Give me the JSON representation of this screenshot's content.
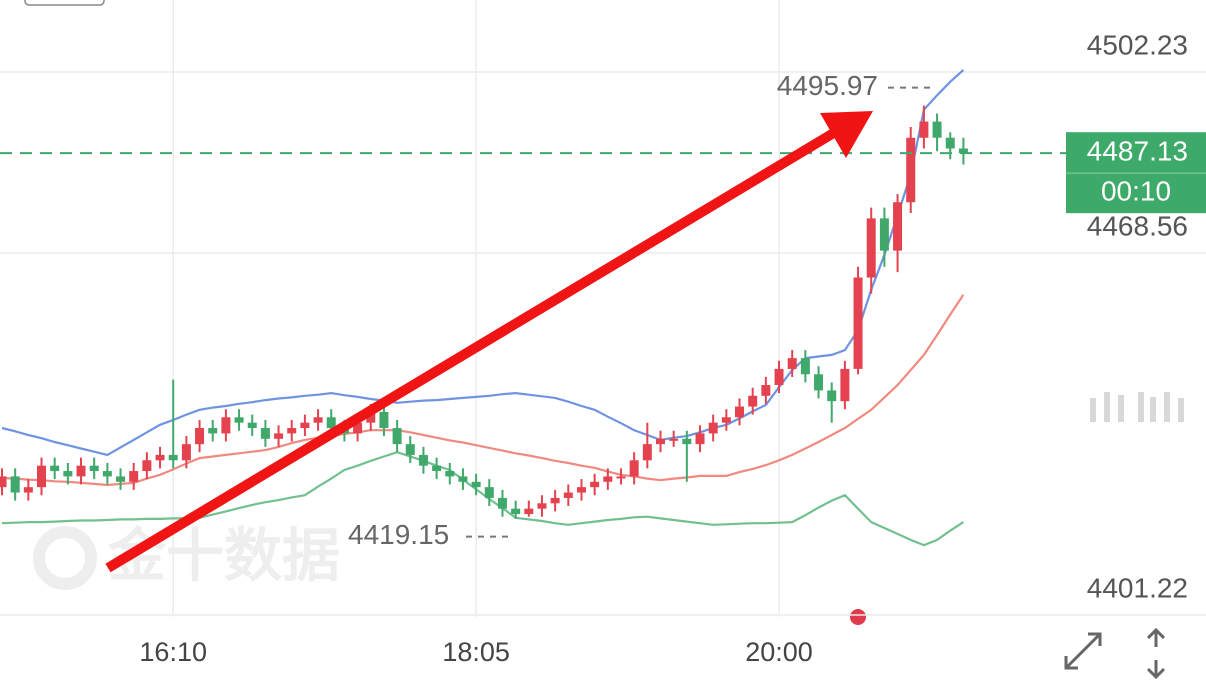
{
  "chart_data": {
    "type": "candlestick",
    "categories": [
      null,
      null,
      null,
      null,
      null,
      null,
      null,
      null,
      null,
      null,
      null,
      null,
      null,
      "16:10",
      null,
      null,
      null,
      null,
      null,
      null,
      null,
      null,
      null,
      null,
      null,
      null,
      null,
      null,
      null,
      null,
      null,
      null,
      null,
      null,
      null,
      null,
      "18:05",
      null,
      null,
      null,
      null,
      null,
      null,
      null,
      null,
      null,
      null,
      null,
      null,
      null,
      null,
      null,
      null,
      null,
      null,
      null,
      null,
      null,
      null,
      "20:00",
      null,
      null,
      null,
      null,
      null,
      null,
      null,
      null,
      null,
      null,
      null,
      null,
      null,
      null
    ],
    "open": [
      4425,
      4427,
      4424,
      4425,
      4429,
      4428,
      4427,
      4429,
      4428,
      4427,
      4426,
      4428,
      4430,
      4431,
      4430,
      4433,
      4436,
      4435,
      4438,
      4437,
      4436,
      4434,
      4435,
      4436,
      4437,
      4438,
      4436,
      4435,
      4437,
      4439,
      4436,
      4433,
      4431,
      4429,
      4428,
      4427,
      4426,
      4425,
      4423,
      4421,
      4420,
      4421,
      4422,
      4423,
      4424,
      4425,
      4426,
      4427,
      4427,
      4430,
      4433,
      4434,
      4434,
      4433,
      4435,
      4437,
      4438,
      4440,
      4442,
      4444,
      4447,
      4449,
      4446,
      4443,
      4441,
      4447,
      4464,
      4475,
      4469,
      4478,
      4490,
      4493,
      4490,
      4488
    ],
    "high": [
      4428.5,
      4428.5,
      4426.5,
      4430.5,
      4430.5,
      4429.5,
      4430.5,
      4430.5,
      4429.5,
      4428.5,
      4429.5,
      4431.5,
      4432.5,
      4445,
      4434.5,
      4437.5,
      4437.5,
      4439.5,
      4439.5,
      4438.5,
      4437.5,
      4436.5,
      4437.5,
      4438.5,
      4439.5,
      4439.5,
      4437.5,
      4438.5,
      4440.5,
      4440.5,
      4437.5,
      4434.5,
      4432.5,
      4430.5,
      4429.5,
      4428.5,
      4427.5,
      4426.5,
      4424.5,
      4422.5,
      4422.5,
      4423.5,
      4424.5,
      4425.5,
      4426.5,
      4427.5,
      4428.5,
      4428.5,
      4431.5,
      4437,
      4435.5,
      4435.5,
      4435.5,
      4436.5,
      4438.5,
      4439.5,
      4441.5,
      4443.5,
      4445.5,
      4448.5,
      4450.5,
      4450.5,
      4447.5,
      4444.5,
      4448.5,
      4466,
      4477,
      4477,
      4479.5,
      4492,
      4495.97,
      4494.5,
      4491,
      4490
    ],
    "low": [
      4423.5,
      4422.5,
      4422.5,
      4423.5,
      4426.5,
      4425.5,
      4425.5,
      4426.5,
      4425.5,
      4424.5,
      4424.5,
      4426.5,
      4428.5,
      4428.5,
      4428.5,
      4431.5,
      4433.5,
      4433.5,
      4435.5,
      4434.5,
      4432.5,
      4432.5,
      4433.5,
      4434.5,
      4435.5,
      4434.5,
      4433.5,
      4433.5,
      4435.5,
      4434.5,
      4431.5,
      4429.5,
      4427.5,
      4426.5,
      4425.5,
      4424.5,
      4423.5,
      4421.5,
      4419.5,
      4419.15,
      4419.5,
      4419.5,
      4420.5,
      4421.5,
      4422.5,
      4423.5,
      4424.5,
      4425.5,
      4425.5,
      4428.5,
      4431.5,
      4432.5,
      4426,
      4431.5,
      4433.5,
      4435.5,
      4436.5,
      4438.5,
      4440.5,
      4442.5,
      4445.5,
      4444.5,
      4441.5,
      4437,
      4439.5,
      4446,
      4461,
      4466,
      4465,
      4476,
      4488,
      4487.5,
      4486,
      4485
    ],
    "close": [
      4427,
      4424,
      4425,
      4429,
      4428,
      4427,
      4429,
      4428,
      4427,
      4426,
      4428,
      4430,
      4431,
      4430,
      4433,
      4436,
      4435,
      4438,
      4437,
      4436,
      4434,
      4435,
      4436,
      4437,
      4438,
      4436,
      4435,
      4437,
      4439,
      4436,
      4433,
      4431,
      4429,
      4428,
      4427,
      4426,
      4425,
      4423,
      4421,
      4420,
      4421,
      4422,
      4423,
      4424,
      4425,
      4426,
      4427,
      4427,
      4430,
      4433,
      4434,
      4434,
      4433,
      4435,
      4437,
      4438,
      4440,
      4442,
      4444,
      4447,
      4449,
      4446,
      4443,
      4441,
      4447,
      4464,
      4475,
      4469,
      4478,
      4490,
      4493,
      4490,
      4488,
      4487.13
    ],
    "up_color": "#e3424e",
    "down_color": "#3fa86a",
    "lines": [
      {
        "color": "#6f93e2",
        "values": [
          4436.0,
          4435.4,
          4434.7,
          4434.1,
          4433.4,
          4432.8,
          4432.2,
          4431.6,
          4431.0,
          4432.4,
          4433.8,
          4435.2,
          4436.6,
          4437.5,
          4438.5,
          4439.4,
          4439.8,
          4440.1,
          4440.5,
          4440.8,
          4441.2,
          4441.5,
          4441.7,
          4442.0,
          4442.2,
          4442.5,
          4442.1,
          4441.8,
          4441.4,
          4441.1,
          4440.7,
          4440.9,
          4441.1,
          4441.2,
          4441.4,
          4441.6,
          4441.8,
          4442.0,
          4442.3,
          4442.5,
          4442.2,
          4441.9,
          4441.6,
          4440.9,
          4440.1,
          4439.4,
          4438.1,
          4436.9,
          4435.6,
          4434.7,
          4433.8,
          4434.2,
          4434.5,
          4435.2,
          4436.0,
          4436.6,
          4437.8,
          4439.1,
          4440.3,
          4443.6,
          4446.8,
          4449.0,
          4449.3,
          4449.6,
          4450.5,
          4454.2,
          4461.7,
          4468.2,
          4475.6,
          4483.1,
          4495.2,
          4497.9,
          4500.4,
          4502.6
        ]
      },
      {
        "color": "#f08a80",
        "values": [
          4426.7,
          4426.6,
          4426.4,
          4426.3,
          4426.1,
          4426.0,
          4425.8,
          4425.6,
          4425.4,
          4425.6,
          4425.8,
          4426.6,
          4427.3,
          4428.3,
          4429.4,
          4430.4,
          4430.7,
          4431.0,
          4431.3,
          4431.6,
          4431.9,
          4432.5,
          4433.2,
          4433.8,
          4434.2,
          4434.5,
          4434.9,
          4435.2,
          4435.6,
          4435.6,
          4435.6,
          4435.2,
          4434.7,
          4434.2,
          4433.7,
          4433.3,
          4432.8,
          4432.3,
          4431.8,
          4431.3,
          4430.9,
          4430.4,
          4429.9,
          4429.5,
          4429.0,
          4428.6,
          4427.9,
          4427.3,
          4427.0,
          4426.6,
          4426.3,
          4426.6,
          4426.8,
          4427.1,
          4427.1,
          4427.1,
          4427.8,
          4428.4,
          4429.1,
          4430.0,
          4431.0,
          4432.2,
          4433.4,
          4434.7,
          4436.0,
          4437.7,
          4439.4,
          4441.7,
          4444.0,
          4446.8,
          4449.6,
          4453.3,
          4457.1,
          4460.8
        ]
      },
      {
        "color": "#72c08e",
        "values": [
          4418.3,
          4418.4,
          4418.5,
          4418.5,
          4418.6,
          4418.7,
          4418.8,
          4418.8,
          4418.9,
          4419.0,
          4419.0,
          4419.1,
          4419.1,
          4419.2,
          4419.2,
          4419.3,
          4419.9,
          4420.5,
          4421.1,
          4421.7,
          4422.2,
          4422.6,
          4423.1,
          4423.5,
          4425.1,
          4426.6,
          4428.2,
          4429.0,
          4429.9,
          4430.7,
          4431.5,
          4430.7,
          4429.9,
          4429.0,
          4428.2,
          4426.4,
          4424.6,
          4422.8,
          4421.1,
          4419.3,
          4419.0,
          4418.7,
          4418.3,
          4418.0,
          4418.3,
          4418.6,
          4418.9,
          4419.1,
          4419.4,
          4419.5,
          4419.2,
          4418.9,
          4418.6,
          4418.3,
          4418.0,
          4418.1,
          4418.2,
          4418.3,
          4418.3,
          4418.4,
          4418.5,
          4419.8,
          4421.2,
          4422.5,
          4423.5,
          4421.0,
          4418.5,
          4417.4,
          4416.3,
          4415.2,
          4414.2,
          4415.2,
          4416.9,
          4418.5
        ]
      }
    ],
    "ylim": [
      4400.85,
      4515.62
    ],
    "yticks": [
      4502.23,
      4468.56,
      4401.22
    ],
    "grid": true,
    "max_label": 4495.97,
    "min_label": 4419.15,
    "last_price": 4487.13,
    "last_price_color": "#3daa6a",
    "countdown": "00:10",
    "watermark": "金十数据"
  }
}
